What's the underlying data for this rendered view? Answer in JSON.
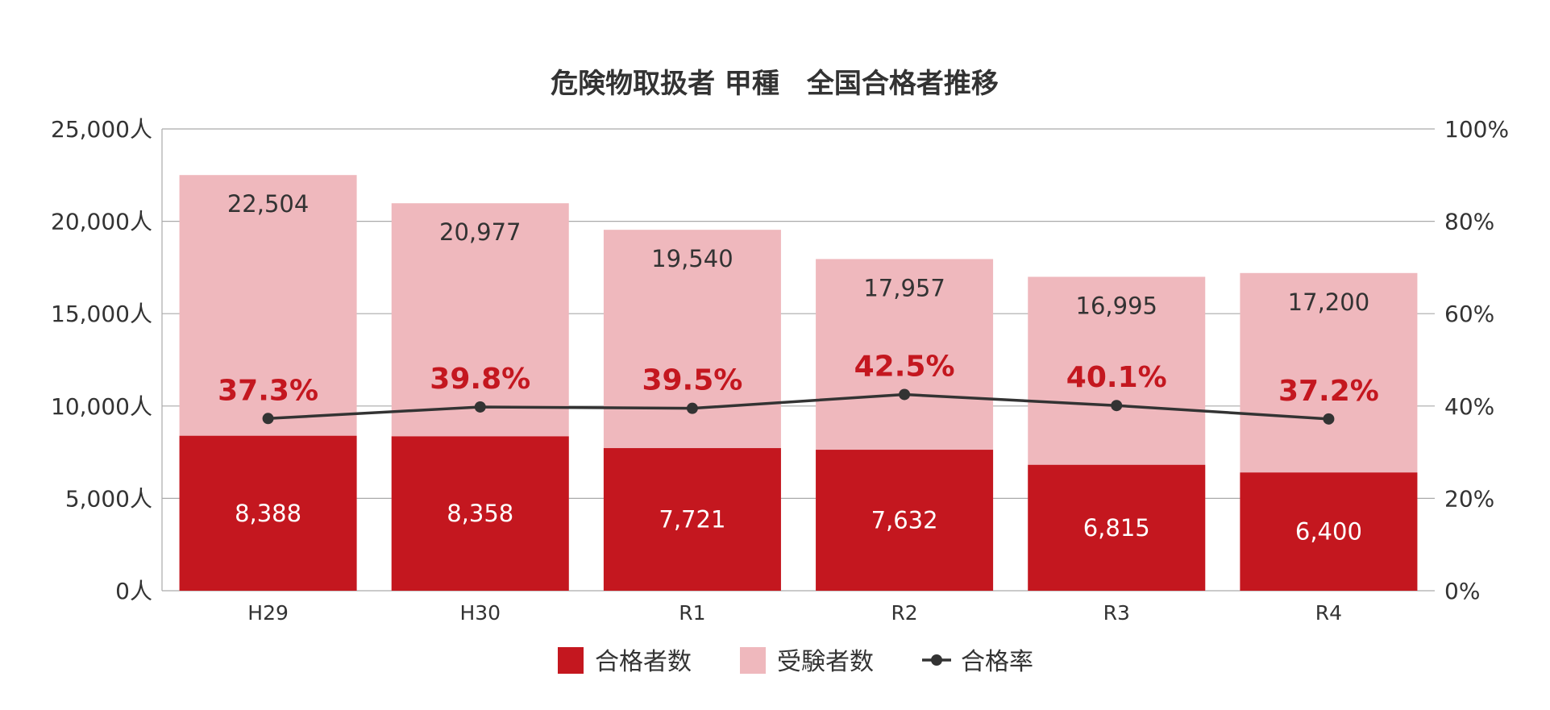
{
  "chart_data": {
    "type": "bar",
    "stacked": true,
    "title": "危険物取扱者 甲種　全国合格者推移",
    "categories": [
      "H29",
      "H30",
      "R1",
      "R2",
      "R3",
      "R4"
    ],
    "series": [
      {
        "name": "合格者数",
        "kind": "bar",
        "values": [
          8388,
          8358,
          7721,
          7632,
          6815,
          6400
        ],
        "labels": [
          "8,388",
          "8,358",
          "7,721",
          "7,632",
          "6,815",
          "6,400"
        ]
      },
      {
        "name": "受験者数",
        "kind": "bar",
        "values": [
          22504,
          20977,
          19540,
          17957,
          16995,
          17200
        ],
        "labels": [
          "22,504",
          "20,977",
          "19,540",
          "17,957",
          "16,995",
          "17,200"
        ]
      },
      {
        "name": "合格率",
        "kind": "line",
        "axis": "right",
        "values": [
          37.3,
          39.8,
          39.5,
          42.5,
          40.1,
          37.2
        ],
        "labels": [
          "37.3%",
          "39.8%",
          "39.5%",
          "42.5%",
          "40.1%",
          "37.2%"
        ]
      }
    ],
    "y_left": {
      "ylim": [
        0,
        25000
      ],
      "ticks": [
        0,
        5000,
        10000,
        15000,
        20000,
        25000
      ],
      "tick_labels": [
        "0人",
        "5,000人",
        "10,000人",
        "15,000人",
        "20,000人",
        "25,000人"
      ]
    },
    "y_right": {
      "ylim": [
        0,
        100
      ],
      "ticks": [
        0,
        20,
        40,
        60,
        80,
        100
      ],
      "tick_labels": [
        "0%",
        "20%",
        "40%",
        "60%",
        "80%",
        "100%"
      ]
    },
    "grid": true,
    "legend": {
      "position": "bottom",
      "entries": [
        "合格者数",
        "受験者数",
        "合格率"
      ]
    },
    "colors": {
      "passed": "#c4171f",
      "examinees": "#efb8bd",
      "rate_line": "#333333",
      "rate_label": "#c4171f",
      "grid": "#aaaaaa",
      "text": "#333333"
    }
  }
}
